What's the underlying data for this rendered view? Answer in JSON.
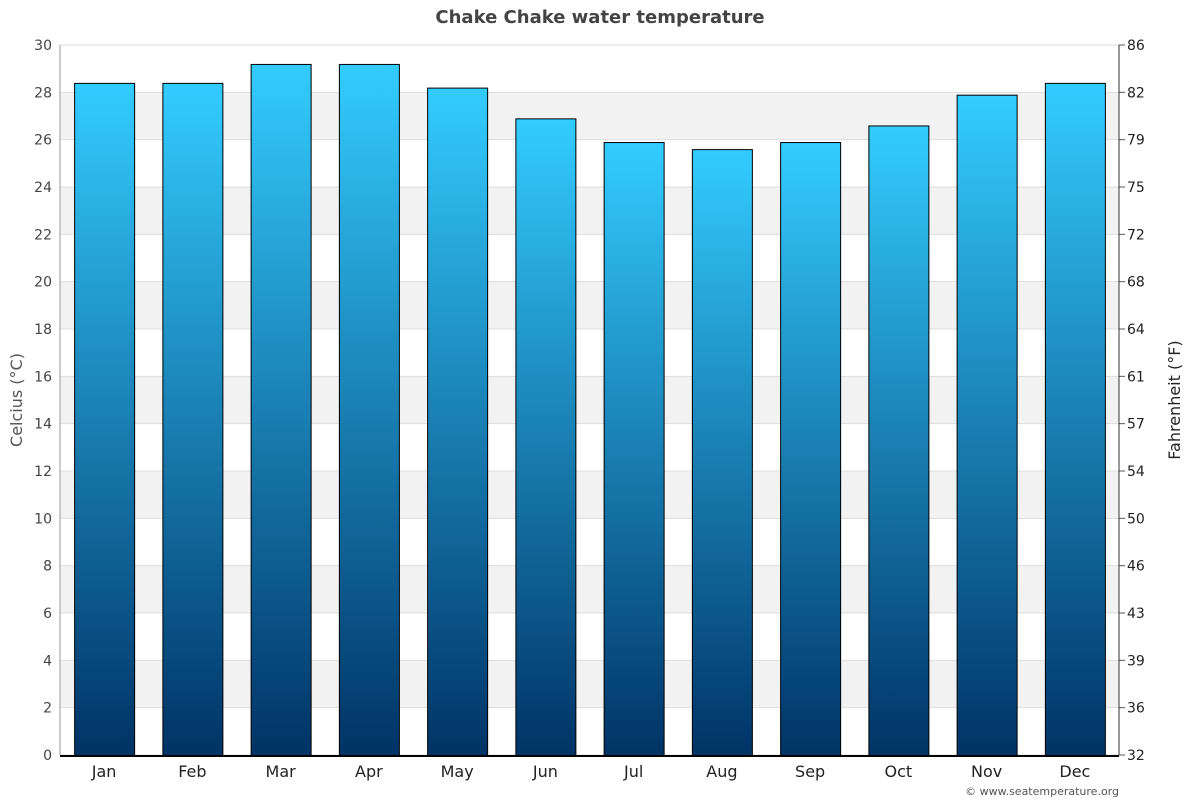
{
  "chart_data": {
    "type": "bar",
    "title": "Chake Chake water temperature",
    "categories": [
      "Jan",
      "Feb",
      "Mar",
      "Apr",
      "May",
      "Jun",
      "Jul",
      "Aug",
      "Sep",
      "Oct",
      "Nov",
      "Dec"
    ],
    "values": [
      28.4,
      28.4,
      29.2,
      29.2,
      28.2,
      26.9,
      25.9,
      25.6,
      25.9,
      26.6,
      27.9,
      28.4
    ],
    "ylabel": "Celcius (°C)",
    "ylabel_right": "Fahrenheit (°F)",
    "ylim": [
      0,
      30
    ],
    "yticks": [
      0,
      2,
      4,
      6,
      8,
      10,
      12,
      14,
      16,
      18,
      20,
      22,
      24,
      26,
      28,
      30
    ],
    "yticks_right": [
      32,
      36,
      39,
      43,
      46,
      50,
      54,
      57,
      61,
      64,
      68,
      72,
      75,
      79,
      82,
      86
    ],
    "grid": true,
    "legend": "none",
    "colors": {
      "bar_top": "#33ccff",
      "bar_bottom": "#003366",
      "band": "#f2f2f2"
    }
  },
  "credit": "© www.seatemperature.org"
}
